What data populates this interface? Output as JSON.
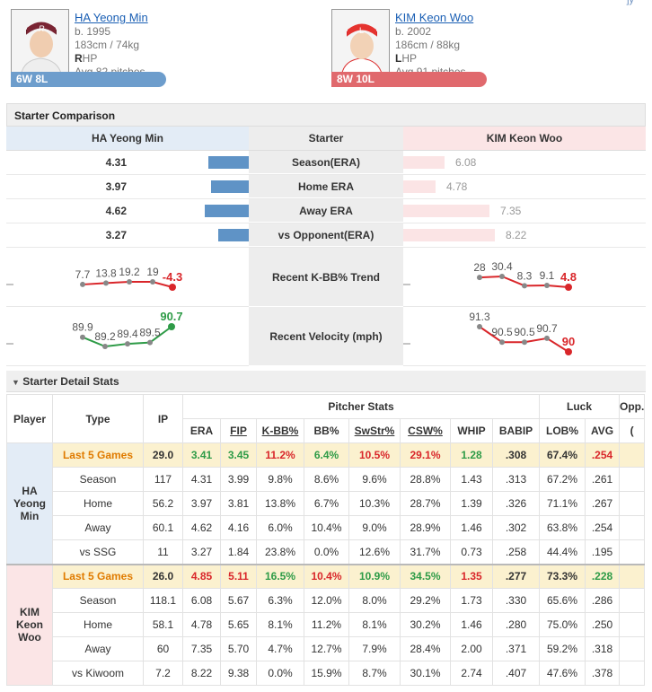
{
  "header": {
    "corner_text": "]y",
    "home": {
      "name": "HA Yeong Min",
      "born": "b. 1995",
      "size": "183cm / 74kg",
      "hand_letter": "R",
      "hand_rest": "HP",
      "avg_pitches": "Avg 82 pitches",
      "record": "6W 8L"
    },
    "away": {
      "name": "KIM Keon Woo",
      "born": "b. 2002",
      "size": "186cm / 88kg",
      "hand_letter": "L",
      "hand_rest": "HP",
      "avg_pitches": "Avg 91 pitches",
      "record": "8W 10L"
    }
  },
  "comparison": {
    "title": "Starter Comparison",
    "left_header": "HA Yeong Min",
    "mid_header": "Starter",
    "right_header": "KIM Keon Woo",
    "rows": [
      {
        "label": "Season(ERA)",
        "left": "4.31",
        "right": "6.08",
        "left_val": 4.31,
        "right_val": 6.08
      },
      {
        "label": "Home ERA",
        "left": "3.97",
        "right": "4.78",
        "left_val": 3.97,
        "right_val": 4.78
      },
      {
        "label": "Away ERA",
        "left": "4.62",
        "right": "7.35",
        "left_val": 4.62,
        "right_val": 7.35
      },
      {
        "label": "vs Opponent(ERA)",
        "left": "3.27",
        "right": "8.22",
        "left_val": 3.27,
        "right_val": 8.22
      }
    ],
    "trend_label": "Recent K-BB% Trend",
    "velocity_label": "Recent Velocity (mph)",
    "trend_left": [
      7.7,
      13.8,
      19.2,
      19,
      -4.3
    ],
    "trend_left_labels": [
      "7.7",
      "13.8",
      "19.2",
      "19",
      "-4.3"
    ],
    "trend_right": [
      28,
      30.4,
      8.3,
      9.1,
      4.8
    ],
    "trend_right_labels": [
      "28",
      "30.4",
      "8.3",
      "9.1",
      "4.8"
    ],
    "velo_left": [
      89.9,
      89.2,
      89.4,
      89.5,
      90.7
    ],
    "velo_left_labels": [
      "89.9",
      "89.2",
      "89.4",
      "89.5",
      "90.7"
    ],
    "velo_right": [
      91.3,
      90.5,
      90.5,
      90.7,
      90
    ],
    "velo_right_labels": [
      "91.3",
      "90.5",
      "90.5",
      "90.7",
      "90"
    ],
    "colors": {
      "home_bar": "#5f93c6",
      "away_bar": "#fbe4e5",
      "up": "#2e9b47",
      "down": "#d9262a",
      "line": "#d9262a"
    }
  },
  "detail": {
    "title": "Starter Detail Stats",
    "toggle_icon": "triangle-down-icon",
    "headers": {
      "player": "Player",
      "type": "Type",
      "ip": "IP",
      "pitcher_stats": "Pitcher Stats",
      "luck": "Luck",
      "opp": "Opp.",
      "era": "ERA",
      "fip": "FIP",
      "kbb": "K-BB%",
      "bb": "BB%",
      "swstr": "SwStr%",
      "csw": "CSW%",
      "whip": "WHIP",
      "babip": "BABIP",
      "lob": "LOB%",
      "avg": "AVG",
      "extra": "("
    },
    "players": [
      {
        "name": "HA Yeong Min",
        "rows": [
          {
            "type": "Last 5 Games",
            "ip": "29.0",
            "era": "3.41",
            "fip": "3.45",
            "kbb": "11.2%",
            "bb": "6.4%",
            "swstr": "10.5%",
            "csw": "29.1%",
            "whip": "1.28",
            "babip": ".308",
            "lob": "67.4%",
            "avg": ".254"
          },
          {
            "type": "Season",
            "ip": "117",
            "era": "4.31",
            "fip": "3.99",
            "kbb": "9.8%",
            "bb": "8.6%",
            "swstr": "9.6%",
            "csw": "28.8%",
            "whip": "1.43",
            "babip": ".313",
            "lob": "67.2%",
            "avg": ".261"
          },
          {
            "type": "Home",
            "ip": "56.2",
            "era": "3.97",
            "fip": "3.81",
            "kbb": "13.8%",
            "bb": "6.7%",
            "swstr": "10.3%",
            "csw": "28.7%",
            "whip": "1.39",
            "babip": ".326",
            "lob": "71.1%",
            "avg": ".267"
          },
          {
            "type": "Away",
            "ip": "60.1",
            "era": "4.62",
            "fip": "4.16",
            "kbb": "6.0%",
            "bb": "10.4%",
            "swstr": "9.0%",
            "csw": "28.9%",
            "whip": "1.46",
            "babip": ".302",
            "lob": "63.8%",
            "avg": ".254"
          },
          {
            "type": "vs SSG",
            "ip": "11",
            "era": "3.27",
            "fip": "1.84",
            "kbb": "23.8%",
            "bb": "0.0%",
            "swstr": "12.6%",
            "csw": "31.7%",
            "whip": "0.73",
            "babip": ".258",
            "lob": "44.4%",
            "avg": ".195"
          }
        ]
      },
      {
        "name": "KIM Keon Woo",
        "rows": [
          {
            "type": "Last 5 Games",
            "ip": "26.0",
            "era": "4.85",
            "fip": "5.11",
            "kbb": "16.5%",
            "bb": "10.4%",
            "swstr": "10.9%",
            "csw": "34.5%",
            "whip": "1.35",
            "babip": ".277",
            "lob": "73.3%",
            "avg": ".228"
          },
          {
            "type": "Season",
            "ip": "118.1",
            "era": "6.08",
            "fip": "5.67",
            "kbb": "6.3%",
            "bb": "12.0%",
            "swstr": "8.0%",
            "csw": "29.2%",
            "whip": "1.73",
            "babip": ".330",
            "lob": "65.6%",
            "avg": ".286"
          },
          {
            "type": "Home",
            "ip": "58.1",
            "era": "4.78",
            "fip": "5.65",
            "kbb": "8.1%",
            "bb": "11.2%",
            "swstr": "8.1%",
            "csw": "30.2%",
            "whip": "1.46",
            "babip": ".280",
            "lob": "75.0%",
            "avg": ".250"
          },
          {
            "type": "Away",
            "ip": "60",
            "era": "7.35",
            "fip": "5.70",
            "kbb": "4.7%",
            "bb": "12.7%",
            "swstr": "7.9%",
            "csw": "28.4%",
            "whip": "2.00",
            "babip": ".371",
            "lob": "59.2%",
            "avg": ".318"
          },
          {
            "type": "vs Kiwoom",
            "ip": "7.2",
            "era": "8.22",
            "fip": "9.38",
            "kbb": "0.0%",
            "bb": "15.9%",
            "swstr": "8.7%",
            "csw": "30.1%",
            "whip": "2.74",
            "babip": ".407",
            "lob": "47.6%",
            "avg": ".378"
          }
        ]
      }
    ]
  }
}
